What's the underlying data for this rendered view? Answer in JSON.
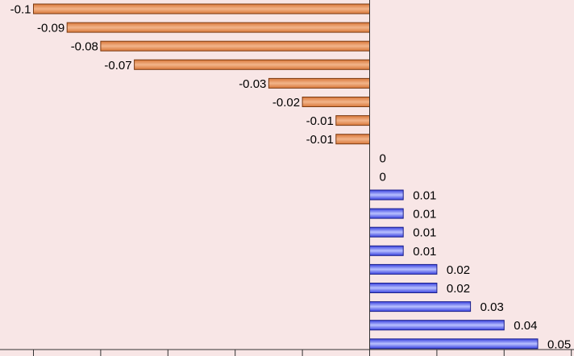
{
  "chart_data": {
    "type": "bar",
    "orientation": "horizontal",
    "values": [
      -0.1,
      -0.09,
      -0.08,
      -0.07,
      -0.03,
      -0.02,
      -0.01,
      -0.01,
      0,
      0,
      0.01,
      0.01,
      0.01,
      0.01,
      0.02,
      0.02,
      0.03,
      0.04,
      0.05
    ],
    "data_labels": [
      "-0.1",
      "-0.09",
      "-0.08",
      "-0.07",
      "-0.03",
      "-0.02",
      "-0.01",
      "-0.01",
      "0",
      "0",
      "0.01",
      "0.01",
      "0.01",
      "0.01",
      "0.02",
      "0.02",
      "0.03",
      "0.04",
      "0.05"
    ],
    "xlim": [
      -0.1,
      0.06
    ],
    "x_tick_step": 0.01,
    "gridlines": false,
    "colors": {
      "background": "#f8e6e6",
      "negative_bar": "#d9783a",
      "negative_bar_light": "#f2b48a",
      "negative_bar_edge": "#7a3a12",
      "positive_bar": "#3b43e0",
      "positive_bar_light": "#b8c0ff",
      "positive_bar_edge": "#1a1f8a",
      "axis": "#333333"
    }
  }
}
